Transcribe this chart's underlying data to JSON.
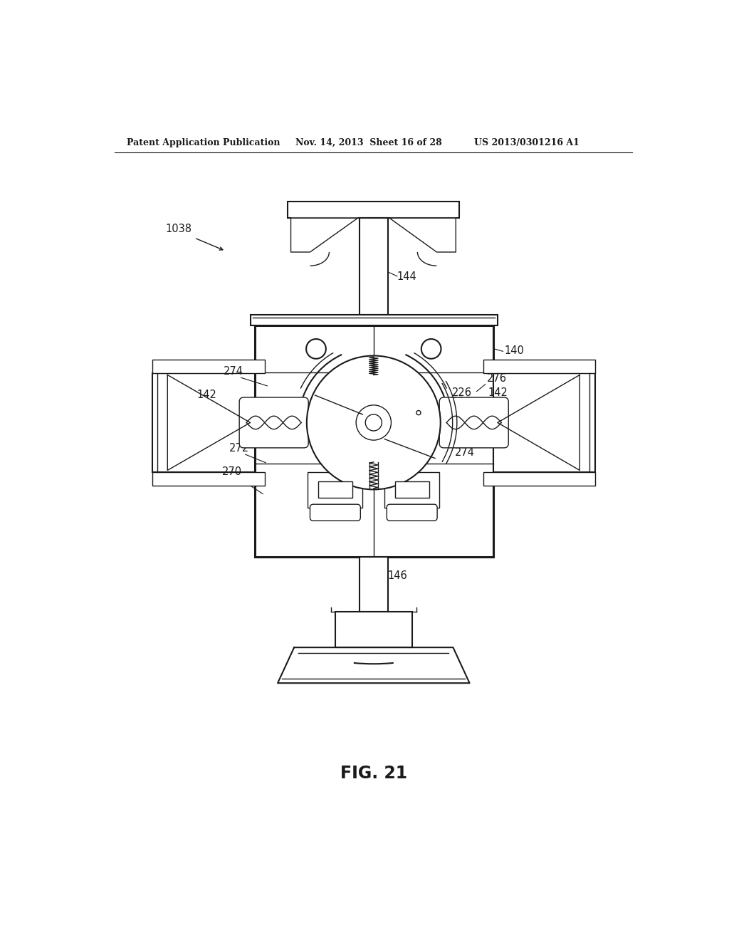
{
  "header_left": "Patent Application Publication",
  "header_mid": "Nov. 14, 2013  Sheet 16 of 28",
  "header_right": "US 2013/0301216 A1",
  "fig_label": "FIG. 21",
  "bg_color": "#ffffff",
  "line_color": "#1a1a1a"
}
